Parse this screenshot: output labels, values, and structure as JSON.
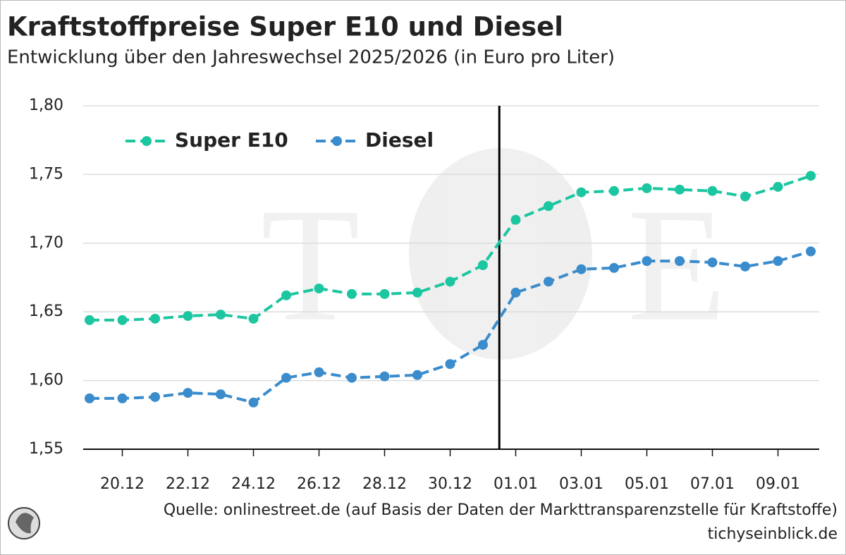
{
  "chart_data": {
    "type": "line",
    "title": "Kraftstoffpreise Super E10 und Diesel",
    "subtitle": "Entwicklung über den Jahreswechsel 2025/2026 (in Euro pro Liter)",
    "source": "Quelle: onlinestreet.de (auf Basis der Daten der Markttransparenzstelle für Kraftstoffe)",
    "site": "tichyseinblick.de",
    "categories": [
      null,
      "20.12",
      null,
      "22.12",
      null,
      "24.12",
      null,
      "26.12",
      null,
      "28.12",
      null,
      "30.12",
      null,
      "01.01",
      null,
      "03.01",
      null,
      "05.01",
      null,
      "07.01",
      null,
      "09.01",
      null
    ],
    "series": [
      {
        "name": "Super E10",
        "color": "#1cc6a0",
        "values": [
          1.644,
          1.644,
          1.645,
          1.647,
          1.648,
          1.645,
          1.662,
          1.667,
          1.663,
          1.663,
          1.664,
          1.672,
          1.684,
          1.717,
          1.727,
          1.737,
          1.738,
          1.74,
          1.739,
          1.738,
          1.734,
          1.741,
          1.749
        ]
      },
      {
        "name": "Diesel",
        "color": "#3a8ccc",
        "values": [
          1.587,
          1.587,
          1.588,
          1.591,
          1.59,
          1.584,
          1.602,
          1.606,
          1.602,
          1.603,
          1.604,
          1.612,
          1.626,
          1.664,
          1.672,
          1.681,
          1.682,
          1.687,
          1.687,
          1.686,
          1.683,
          1.687,
          1.694
        ]
      }
    ],
    "ylim": [
      1.55,
      1.8
    ],
    "yticks": [
      {
        "value": 1.55,
        "label": "1,55"
      },
      {
        "value": 1.6,
        "label": "1,60"
      },
      {
        "value": 1.65,
        "label": "1,65"
      },
      {
        "value": 1.7,
        "label": "1,70"
      },
      {
        "value": 1.75,
        "label": "1,75"
      },
      {
        "value": 1.8,
        "label": "1,80"
      }
    ],
    "grid": true,
    "legend": "top-left"
  }
}
